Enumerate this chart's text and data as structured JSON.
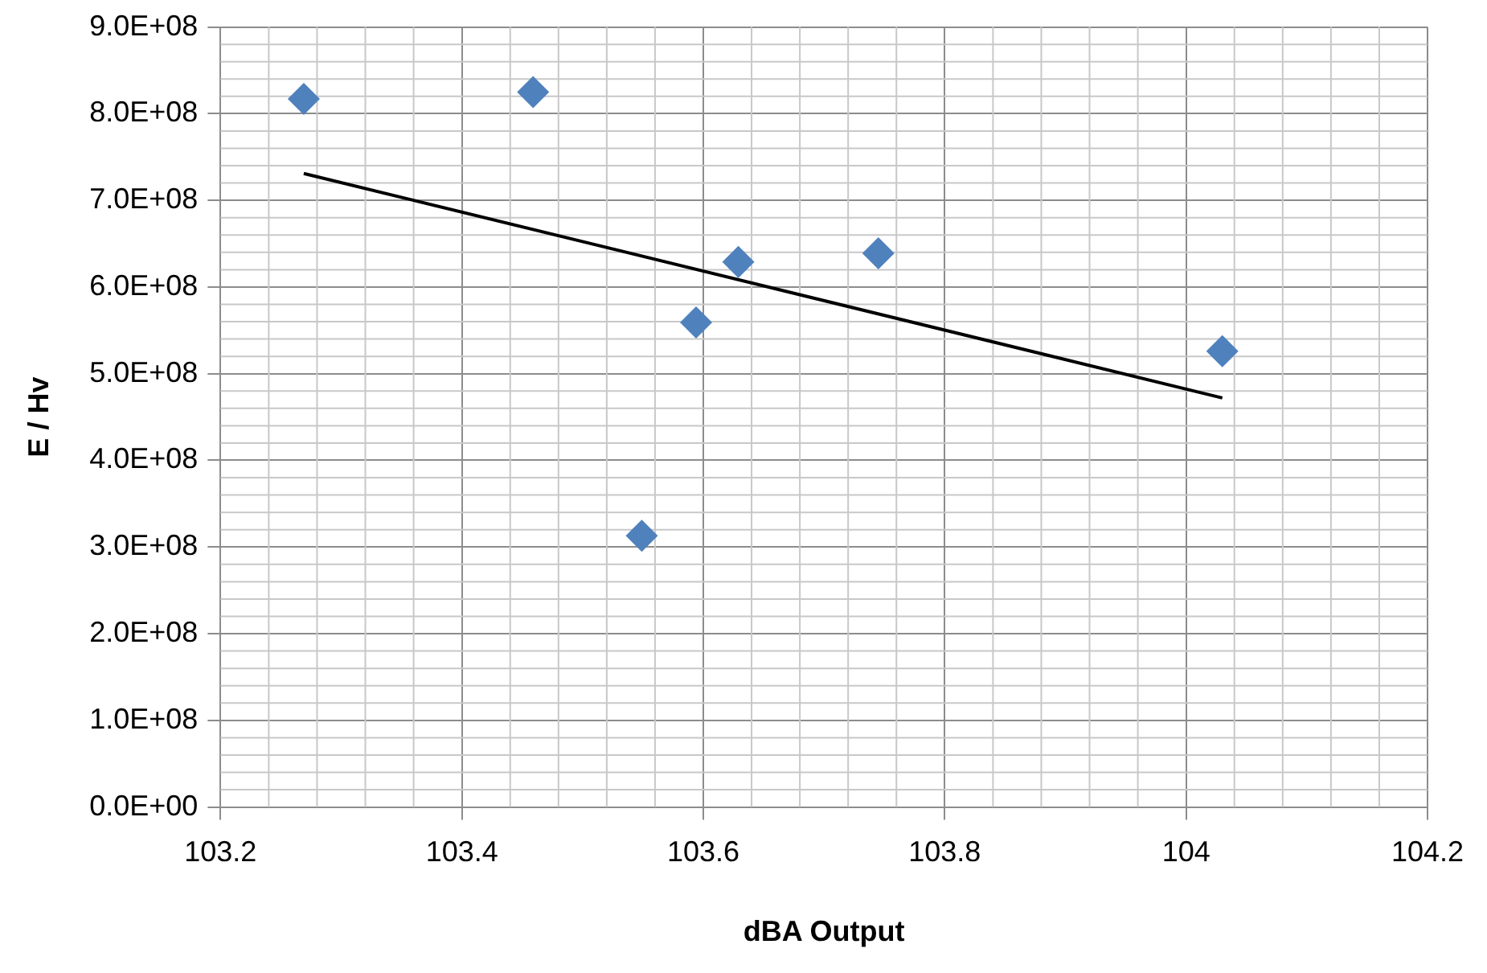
{
  "chart_data": {
    "type": "scatter",
    "xlabel": "dBA Output",
    "ylabel": "E / Hv",
    "xlim": [
      103.2,
      104.2
    ],
    "xticks": [
      103.2,
      103.4,
      103.6,
      103.8,
      104,
      104.2
    ],
    "ylim": [
      0,
      900000000
    ],
    "yticks": [
      {
        "value": 0,
        "label": "0.0E+00"
      },
      {
        "value": 100000000,
        "label": "1.0E+08"
      },
      {
        "value": 200000000,
        "label": "2.0E+08"
      },
      {
        "value": 300000000,
        "label": "3.0E+08"
      },
      {
        "value": 400000000,
        "label": "4.0E+08"
      },
      {
        "value": 500000000,
        "label": "5.0E+08"
      },
      {
        "value": 600000000,
        "label": "6.0E+08"
      },
      {
        "value": 700000000,
        "label": "7.0E+08"
      },
      {
        "value": 800000000,
        "label": "8.0E+08"
      },
      {
        "value": 900000000,
        "label": "9.0E+08"
      }
    ],
    "grid": true,
    "legend": false,
    "marker": "diamond",
    "series": [
      {
        "color": "#4f81bd",
        "x": [
          103.269,
          103.459,
          103.549,
          103.594,
          103.629,
          103.745,
          104.03
        ],
        "values": [
          817000000,
          825000000,
          313000000,
          559000000,
          629000000,
          639000000,
          526000000
        ]
      },
      {
        "type": "line",
        "color": "#000000",
        "marker": "none",
        "x": [
          103.269,
          104.03
        ],
        "values": [
          731000000,
          472000000
        ]
      }
    ]
  }
}
